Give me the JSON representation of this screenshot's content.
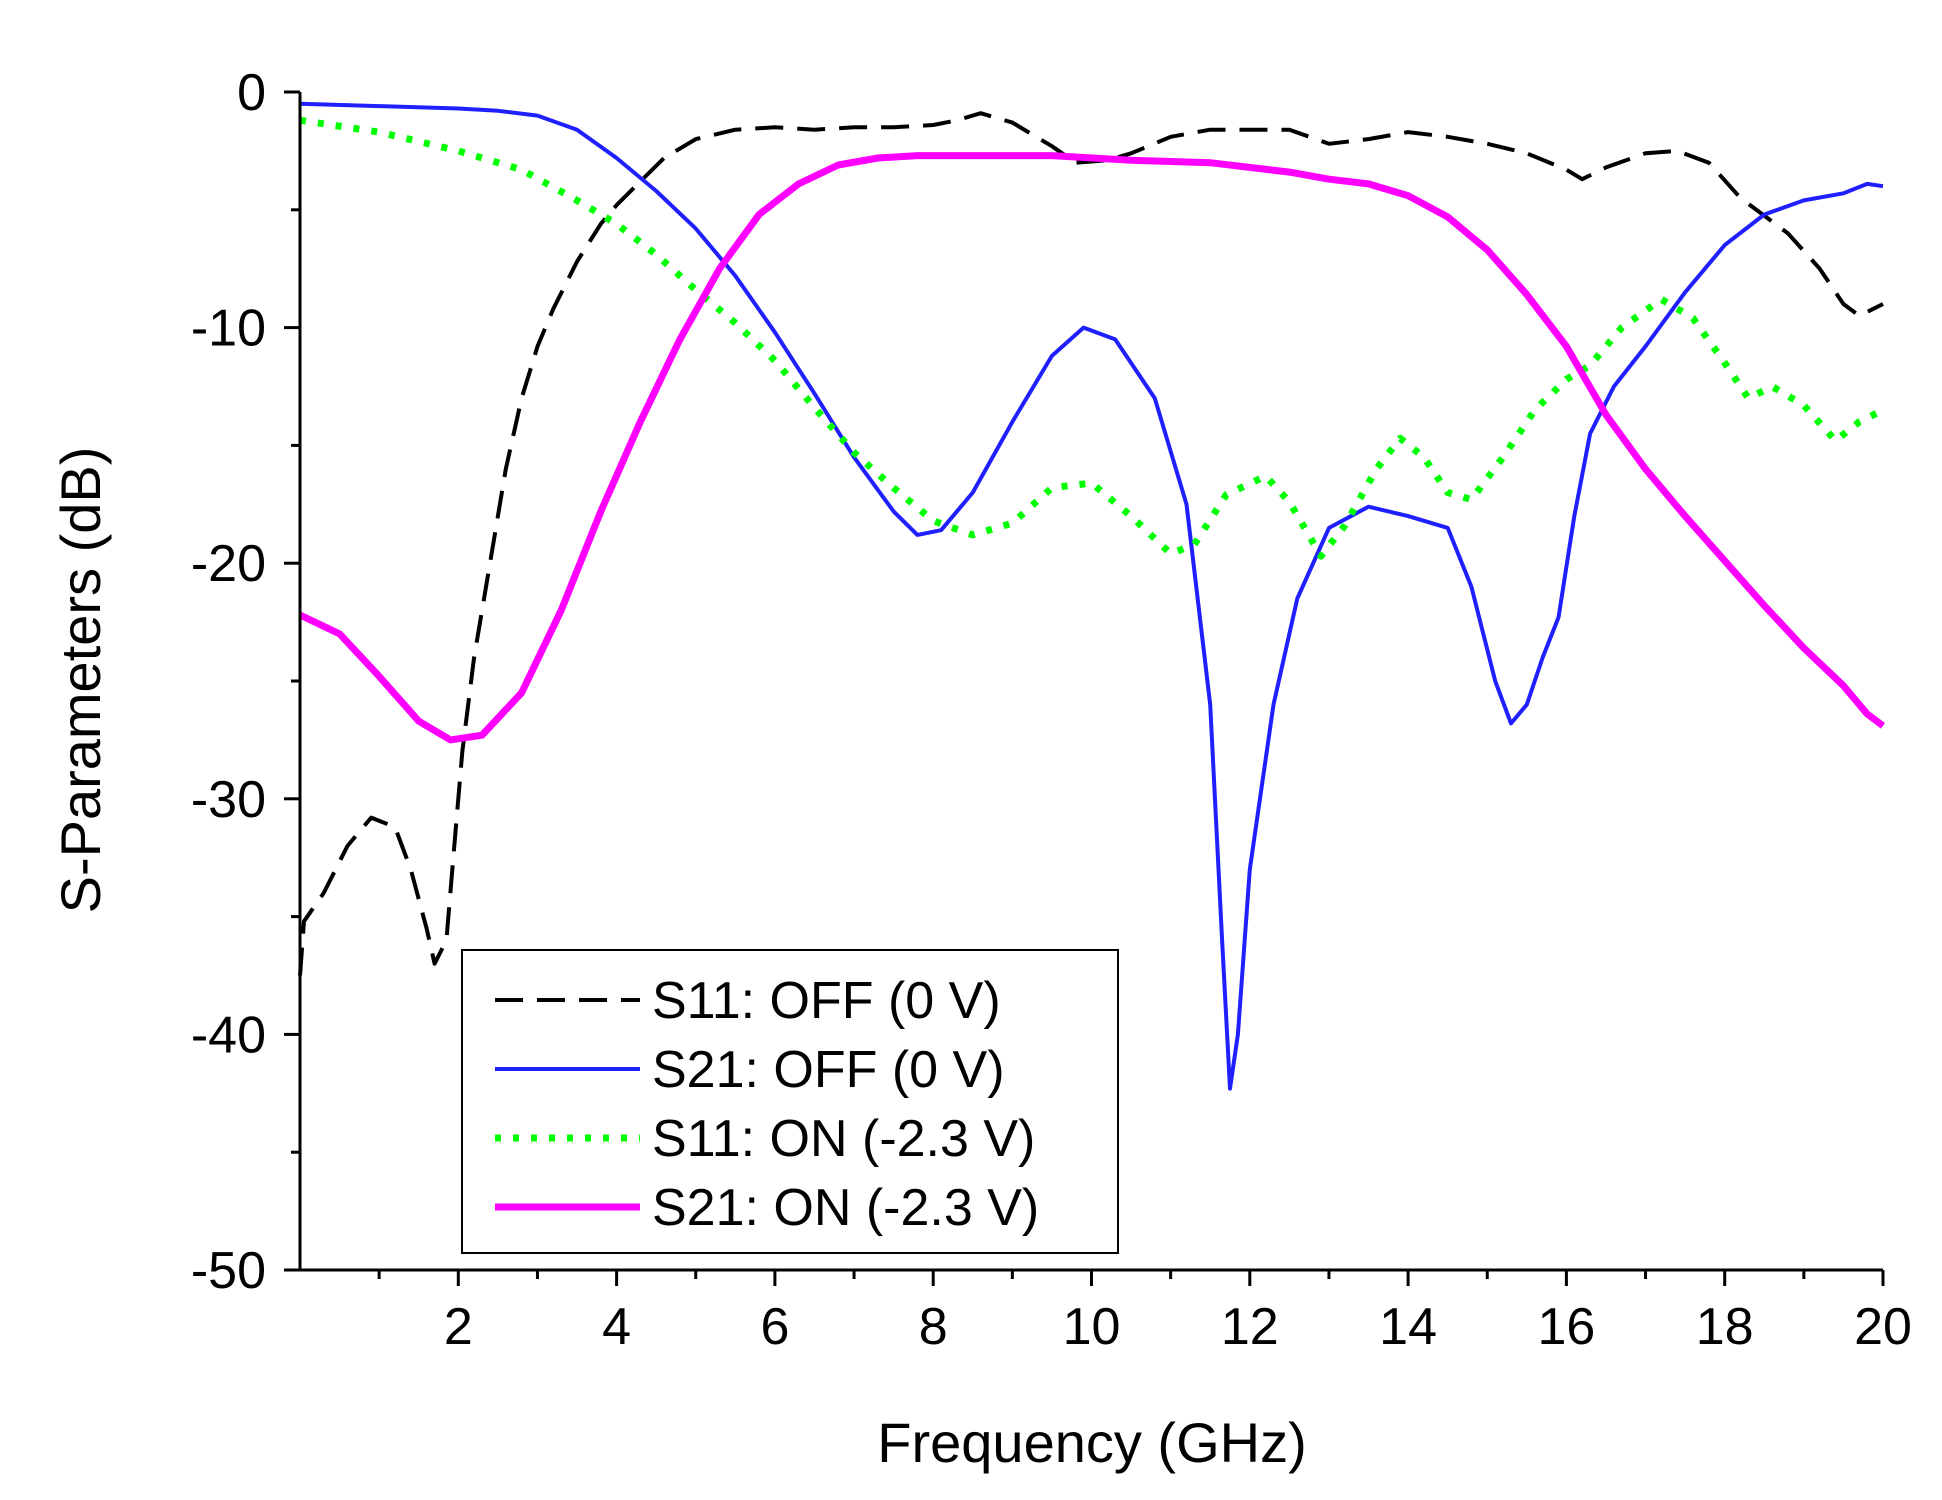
{
  "chart_data": {
    "type": "line",
    "title": "",
    "xlabel": "Frequency (GHz)",
    "ylabel": "S-Parameters (dB)",
    "xlim": [
      0,
      20
    ],
    "ylim": [
      -50,
      0
    ],
    "x_major_ticks": [
      2,
      4,
      6,
      8,
      10,
      12,
      14,
      16,
      18,
      20
    ],
    "x_tick_labels": [
      "2",
      "4",
      "6",
      "8",
      "10",
      "12",
      "14",
      "16",
      "18",
      "20"
    ],
    "y_major_ticks": [
      0,
      -10,
      -20,
      -30,
      -40,
      -50
    ],
    "y_tick_labels": [
      "0",
      "-10",
      "-20",
      "-30",
      "-40",
      "-50"
    ],
    "grid": false,
    "legend_position": "bottom-left",
    "series": [
      {
        "name": "S11: OFF (0 V)",
        "color": "#000000",
        "style": "dashed",
        "points": [
          [
            0,
            -37.5
          ],
          [
            0.05,
            -35.2
          ],
          [
            0.3,
            -34
          ],
          [
            0.6,
            -32
          ],
          [
            0.9,
            -30.8
          ],
          [
            1.2,
            -31.2
          ],
          [
            1.4,
            -33
          ],
          [
            1.6,
            -35.5
          ],
          [
            1.7,
            -37
          ],
          [
            1.85,
            -36
          ],
          [
            1.95,
            -32
          ],
          [
            2.05,
            -28
          ],
          [
            2.2,
            -24
          ],
          [
            2.4,
            -20
          ],
          [
            2.6,
            -16
          ],
          [
            2.8,
            -13
          ],
          [
            3.0,
            -10.8
          ],
          [
            3.2,
            -9.2
          ],
          [
            3.5,
            -7.2
          ],
          [
            3.8,
            -5.6
          ],
          [
            4.0,
            -4.8
          ],
          [
            4.3,
            -3.8
          ],
          [
            4.6,
            -2.8
          ],
          [
            5.0,
            -2.0
          ],
          [
            5.5,
            -1.6
          ],
          [
            6.0,
            -1.5
          ],
          [
            6.5,
            -1.6
          ],
          [
            7.0,
            -1.5
          ],
          [
            7.5,
            -1.5
          ],
          [
            8.0,
            -1.4
          ],
          [
            8.3,
            -1.2
          ],
          [
            8.6,
            -0.9
          ],
          [
            9.0,
            -1.3
          ],
          [
            9.5,
            -2.3
          ],
          [
            9.8,
            -3.0
          ],
          [
            10.2,
            -2.9
          ],
          [
            10.5,
            -2.6
          ],
          [
            11.0,
            -1.9
          ],
          [
            11.5,
            -1.6
          ],
          [
            12.0,
            -1.6
          ],
          [
            12.5,
            -1.6
          ],
          [
            13.0,
            -2.2
          ],
          [
            13.5,
            -2.0
          ],
          [
            14.0,
            -1.7
          ],
          [
            14.5,
            -1.9
          ],
          [
            15.0,
            -2.2
          ],
          [
            15.5,
            -2.6
          ],
          [
            16.0,
            -3.3
          ],
          [
            16.2,
            -3.7
          ],
          [
            16.5,
            -3.2
          ],
          [
            17.0,
            -2.6
          ],
          [
            17.4,
            -2.5
          ],
          [
            17.8,
            -3.0
          ],
          [
            18.2,
            -4.5
          ],
          [
            18.8,
            -6.0
          ],
          [
            19.2,
            -7.5
          ],
          [
            19.5,
            -9.0
          ],
          [
            19.7,
            -9.5
          ],
          [
            20.0,
            -9.0
          ]
        ]
      },
      {
        "name": "S21: OFF (0 V)",
        "color": "#1f1fff",
        "style": "solid",
        "points": [
          [
            0,
            -0.5
          ],
          [
            1.0,
            -0.6
          ],
          [
            2.0,
            -0.7
          ],
          [
            2.5,
            -0.8
          ],
          [
            3.0,
            -1.0
          ],
          [
            3.5,
            -1.6
          ],
          [
            4.0,
            -2.8
          ],
          [
            4.5,
            -4.2
          ],
          [
            5.0,
            -5.8
          ],
          [
            5.5,
            -7.8
          ],
          [
            6.0,
            -10.2
          ],
          [
            6.5,
            -12.8
          ],
          [
            7.0,
            -15.5
          ],
          [
            7.5,
            -17.8
          ],
          [
            7.8,
            -18.8
          ],
          [
            8.1,
            -18.6
          ],
          [
            8.5,
            -17.0
          ],
          [
            9.0,
            -14.0
          ],
          [
            9.5,
            -11.2
          ],
          [
            9.9,
            -10.0
          ],
          [
            10.3,
            -10.5
          ],
          [
            10.8,
            -13.0
          ],
          [
            11.2,
            -17.5
          ],
          [
            11.5,
            -26.0
          ],
          [
            11.65,
            -36.0
          ],
          [
            11.75,
            -42.3
          ],
          [
            11.85,
            -40.0
          ],
          [
            12.0,
            -33.0
          ],
          [
            12.3,
            -26.0
          ],
          [
            12.6,
            -21.5
          ],
          [
            13.0,
            -18.5
          ],
          [
            13.5,
            -17.6
          ],
          [
            14.0,
            -18.0
          ],
          [
            14.5,
            -18.5
          ],
          [
            14.8,
            -21.0
          ],
          [
            15.1,
            -25.0
          ],
          [
            15.3,
            -26.8
          ],
          [
            15.5,
            -26.0
          ],
          [
            15.7,
            -24.0
          ],
          [
            15.9,
            -22.3
          ],
          [
            16.1,
            -18.0
          ],
          [
            16.3,
            -14.5
          ],
          [
            16.6,
            -12.5
          ],
          [
            17.0,
            -10.8
          ],
          [
            17.5,
            -8.5
          ],
          [
            18.0,
            -6.5
          ],
          [
            18.5,
            -5.2
          ],
          [
            19.0,
            -4.6
          ],
          [
            19.5,
            -4.3
          ],
          [
            19.8,
            -3.9
          ],
          [
            20.0,
            -4.0
          ]
        ]
      },
      {
        "name": "S11: ON (-2.3 V)",
        "color": "#00ff00",
        "style": "dotted",
        "points": [
          [
            0,
            -1.2
          ],
          [
            1.0,
            -1.7
          ],
          [
            2.0,
            -2.5
          ],
          [
            2.8,
            -3.3
          ],
          [
            3.5,
            -4.6
          ],
          [
            4.0,
            -5.6
          ],
          [
            4.5,
            -6.9
          ],
          [
            5.0,
            -8.4
          ],
          [
            5.5,
            -9.8
          ],
          [
            6.0,
            -11.4
          ],
          [
            6.5,
            -13.4
          ],
          [
            7.0,
            -15.3
          ],
          [
            7.5,
            -16.8
          ],
          [
            8.0,
            -18.2
          ],
          [
            8.5,
            -18.8
          ],
          [
            9.0,
            -18.3
          ],
          [
            9.5,
            -16.8
          ],
          [
            10.0,
            -16.6
          ],
          [
            10.5,
            -18.0
          ],
          [
            11.0,
            -19.6
          ],
          [
            11.3,
            -19.2
          ],
          [
            11.7,
            -17.1
          ],
          [
            12.2,
            -16.3
          ],
          [
            12.5,
            -17.4
          ],
          [
            12.9,
            -19.7
          ],
          [
            13.2,
            -18.4
          ],
          [
            13.6,
            -16.0
          ],
          [
            13.9,
            -14.7
          ],
          [
            14.2,
            -15.5
          ],
          [
            14.5,
            -17.0
          ],
          [
            14.8,
            -17.3
          ],
          [
            15.2,
            -15.5
          ],
          [
            15.6,
            -13.5
          ],
          [
            16.0,
            -12.2
          ],
          [
            16.3,
            -11.6
          ],
          [
            16.7,
            -10.0
          ],
          [
            17.2,
            -8.8
          ],
          [
            17.6,
            -9.6
          ],
          [
            18.0,
            -11.5
          ],
          [
            18.3,
            -13.0
          ],
          [
            18.6,
            -12.5
          ],
          [
            19.0,
            -13.3
          ],
          [
            19.4,
            -14.8
          ],
          [
            19.7,
            -14.0
          ],
          [
            20.0,
            -13.5
          ]
        ]
      },
      {
        "name": "S21: ON (-2.3 V)",
        "color": "#ff00ff",
        "style": "solid",
        "points": [
          [
            0,
            -22.2
          ],
          [
            0.5,
            -23.0
          ],
          [
            1.0,
            -24.8
          ],
          [
            1.5,
            -26.7
          ],
          [
            1.9,
            -27.5
          ],
          [
            2.3,
            -27.3
          ],
          [
            2.8,
            -25.5
          ],
          [
            3.3,
            -22.0
          ],
          [
            3.8,
            -17.8
          ],
          [
            4.3,
            -14.0
          ],
          [
            4.8,
            -10.5
          ],
          [
            5.3,
            -7.5
          ],
          [
            5.8,
            -5.2
          ],
          [
            6.3,
            -3.9
          ],
          [
            6.8,
            -3.1
          ],
          [
            7.3,
            -2.8
          ],
          [
            7.8,
            -2.7
          ],
          [
            8.5,
            -2.7
          ],
          [
            9.5,
            -2.7
          ],
          [
            10.5,
            -2.9
          ],
          [
            11.5,
            -3.0
          ],
          [
            12.5,
            -3.4
          ],
          [
            13.0,
            -3.7
          ],
          [
            13.5,
            -3.9
          ],
          [
            14.0,
            -4.4
          ],
          [
            14.5,
            -5.3
          ],
          [
            15.0,
            -6.7
          ],
          [
            15.5,
            -8.6
          ],
          [
            16.0,
            -10.8
          ],
          [
            16.5,
            -13.7
          ],
          [
            17.0,
            -16.0
          ],
          [
            17.5,
            -18.0
          ],
          [
            18.0,
            -19.9
          ],
          [
            18.5,
            -21.8
          ],
          [
            19.0,
            -23.6
          ],
          [
            19.5,
            -25.2
          ],
          [
            19.8,
            -26.4
          ],
          [
            20.0,
            -26.9
          ]
        ]
      }
    ]
  }
}
